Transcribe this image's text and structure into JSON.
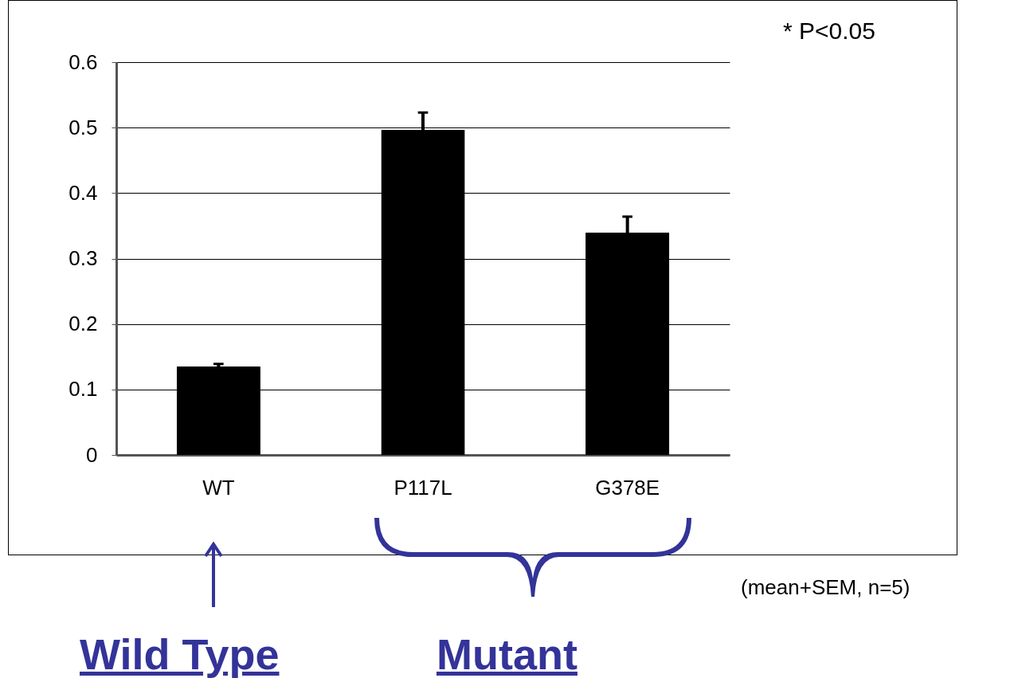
{
  "chart_data": {
    "type": "bar",
    "categories": [
      "WT",
      "P117L",
      "G378E"
    ],
    "values": [
      0.135,
      0.497,
      0.34
    ],
    "errors": [
      0.004,
      0.026,
      0.024
    ],
    "color": "#000000",
    "ylim": [
      0,
      0.6
    ],
    "yticks": [
      0,
      0.1,
      0.2,
      0.3,
      0.4,
      0.5,
      0.6
    ],
    "grid": "y",
    "annotations": [
      "* P<0.05",
      "(mean+SEM, n=5)",
      "Wild Type",
      "Mutant"
    ]
  }
}
